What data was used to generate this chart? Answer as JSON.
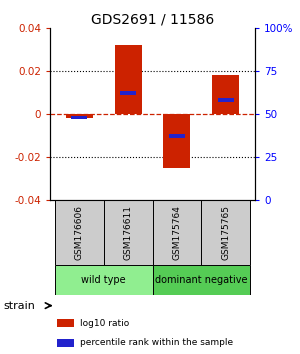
{
  "title": "GDS2691 / 11586",
  "samples": [
    "GSM176606",
    "GSM176611",
    "GSM175764",
    "GSM175765"
  ],
  "log10_ratio": [
    -0.002,
    0.032,
    -0.025,
    0.018
  ],
  "percentile_rank": [
    48,
    62,
    37,
    58
  ],
  "ylim_left": [
    -0.04,
    0.04
  ],
  "ylim_right": [
    0,
    100
  ],
  "yticks_left": [
    -0.04,
    -0.02,
    0,
    0.02,
    0.04
  ],
  "yticks_right": [
    0,
    25,
    50,
    75,
    100
  ],
  "ytick_labels_right": [
    "0",
    "25",
    "50",
    "75",
    "100%"
  ],
  "ytick_labels_left": [
    "-0.04",
    "-0.02",
    "0",
    "0.02",
    "0.04"
  ],
  "groups": [
    {
      "label": "wild type",
      "samples": [
        0,
        1
      ],
      "color": "#90ee90"
    },
    {
      "label": "dominant negative",
      "samples": [
        2,
        3
      ],
      "color": "#55cc55"
    }
  ],
  "bar_color": "#cc2200",
  "blue_color": "#2222cc",
  "hline_color": "#cc2200",
  "hline_style": "--",
  "grid_color": "black",
  "grid_style": ":",
  "bar_width": 0.55,
  "strain_label": "strain",
  "legend_items": [
    {
      "color": "#cc2200",
      "label": "log10 ratio"
    },
    {
      "color": "#2222cc",
      "label": "percentile rank within the sample"
    }
  ],
  "bg_color": "#ffffff"
}
